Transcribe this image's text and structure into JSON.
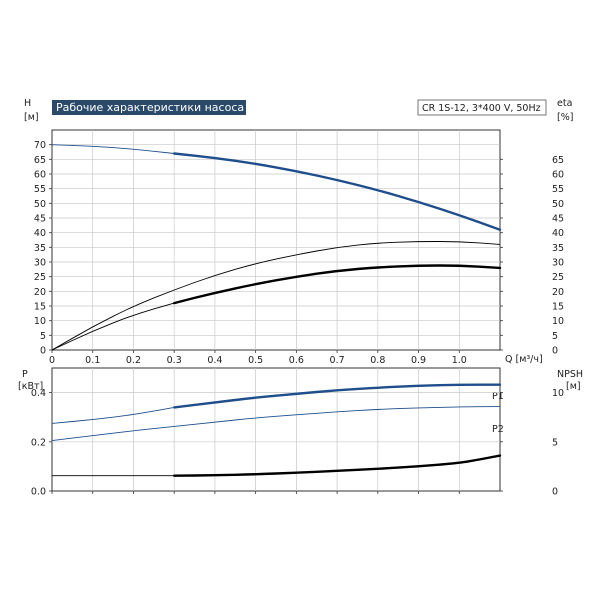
{
  "chart_data": [
    {
      "type": "line",
      "title": "Рабочие характеристики насоса",
      "model_label": "CR 1S-12, 3*400 V, 50Hz",
      "left_axis": {
        "label_top": "H",
        "label_unit": "[м]",
        "ylim": [
          0,
          75
        ],
        "ticks": [
          0,
          5,
          10,
          15,
          20,
          25,
          30,
          35,
          40,
          45,
          50,
          55,
          60,
          65,
          70
        ]
      },
      "right_axis": {
        "label_top": "eta",
        "label_unit": "[%]",
        "ylim": [
          0,
          75
        ],
        "ticks": [
          0,
          5,
          10,
          15,
          20,
          25,
          30,
          35,
          40,
          45,
          50,
          55,
          60,
          65
        ]
      },
      "x_axis": {
        "label": "Q [м³/ч]",
        "xlim": [
          0,
          1.1
        ],
        "ticks": [
          "0",
          "0.1",
          "0.2",
          "0.3",
          "0.4",
          "0.5",
          "0.6",
          "0.7",
          "0.8",
          "0.9",
          "1.0"
        ],
        "tick_values": [
          0,
          0.1,
          0.2,
          0.3,
          0.4,
          0.5,
          0.6,
          0.7,
          0.8,
          0.9,
          1.0
        ]
      },
      "grid": true,
      "series": [
        {
          "key": "H",
          "axis": "left",
          "color": "#1f4e8c",
          "bold_from": 0.3,
          "x": [
            0,
            0.1,
            0.2,
            0.3,
            0.4,
            0.5,
            0.6,
            0.7,
            0.8,
            0.9,
            1.0,
            1.1
          ],
          "y": [
            70,
            69.5,
            68.5,
            67,
            65.5,
            63.5,
            61,
            58,
            54.5,
            50.5,
            46,
            41
          ]
        },
        {
          "key": "eta",
          "axis": "right",
          "color": "#000000",
          "bold_from": 1.2,
          "x": [
            0,
            0.1,
            0.2,
            0.3,
            0.4,
            0.5,
            0.6,
            0.7,
            0.8,
            0.9,
            1.0,
            1.1
          ],
          "y": [
            0,
            8,
            15,
            20.5,
            25.5,
            29.5,
            32.5,
            35,
            36.5,
            37,
            37,
            36
          ]
        },
        {
          "key": "eta_total",
          "axis": "right",
          "color": "#000000",
          "bold_from": 0.3,
          "x": [
            0,
            0.1,
            0.2,
            0.3,
            0.4,
            0.5,
            0.6,
            0.7,
            0.8,
            0.9,
            1.0,
            1.1
          ],
          "y": [
            0,
            6.5,
            12,
            16,
            19.5,
            22.5,
            25,
            27,
            28.2,
            28.8,
            28.8,
            28
          ]
        }
      ]
    },
    {
      "type": "line",
      "left_axis": {
        "label_top": "P",
        "label_unit": "[кВт]",
        "ylim": [
          0,
          0.5
        ],
        "ticks": [
          "0.0",
          "0.2",
          "0.4"
        ],
        "tick_values": [
          0,
          0.2,
          0.4
        ]
      },
      "right_axis": {
        "label_top": "NPSH",
        "label_unit": "[м]",
        "ylim": [
          0,
          12.5
        ],
        "ticks": [
          "0",
          "5",
          "10"
        ],
        "tick_values": [
          0,
          5,
          10
        ]
      },
      "x_axis": {
        "xlim": [
          0,
          1.1
        ]
      },
      "grid": true,
      "series": [
        {
          "name": "P1",
          "axis": "left",
          "color": "#1f4e8c",
          "bold_from": 0.3,
          "x": [
            0,
            0.1,
            0.2,
            0.3,
            0.4,
            0.5,
            0.6,
            0.7,
            0.8,
            0.9,
            1.0,
            1.1
          ],
          "y": [
            0.275,
            0.29,
            0.31,
            0.34,
            0.36,
            0.38,
            0.395,
            0.41,
            0.42,
            0.428,
            0.432,
            0.432
          ]
        },
        {
          "name": "P2",
          "axis": "left",
          "color": "#1f4e8c",
          "bold_from": 1.2,
          "x": [
            0,
            0.1,
            0.2,
            0.3,
            0.4,
            0.5,
            0.6,
            0.7,
            0.8,
            0.9,
            1.0,
            1.1
          ],
          "y": [
            0.205,
            0.225,
            0.245,
            0.262,
            0.28,
            0.297,
            0.31,
            0.322,
            0.332,
            0.338,
            0.342,
            0.343
          ]
        },
        {
          "key": "NPSH",
          "axis": "right",
          "color": "#000000",
          "bold_from": 0.3,
          "x": [
            0.3,
            0.4,
            0.5,
            0.6,
            0.7,
            0.8,
            0.9,
            1.0,
            1.05,
            1.1
          ],
          "y": [
            1.55,
            1.6,
            1.7,
            1.85,
            2.05,
            2.25,
            2.5,
            2.85,
            3.2,
            3.6
          ]
        },
        {
          "key": "NPSH_base",
          "axis": "right",
          "color": "#000000",
          "bold_from": 1.2,
          "x": [
            0,
            0.3
          ],
          "y": [
            1.55,
            1.55
          ]
        }
      ]
    }
  ]
}
